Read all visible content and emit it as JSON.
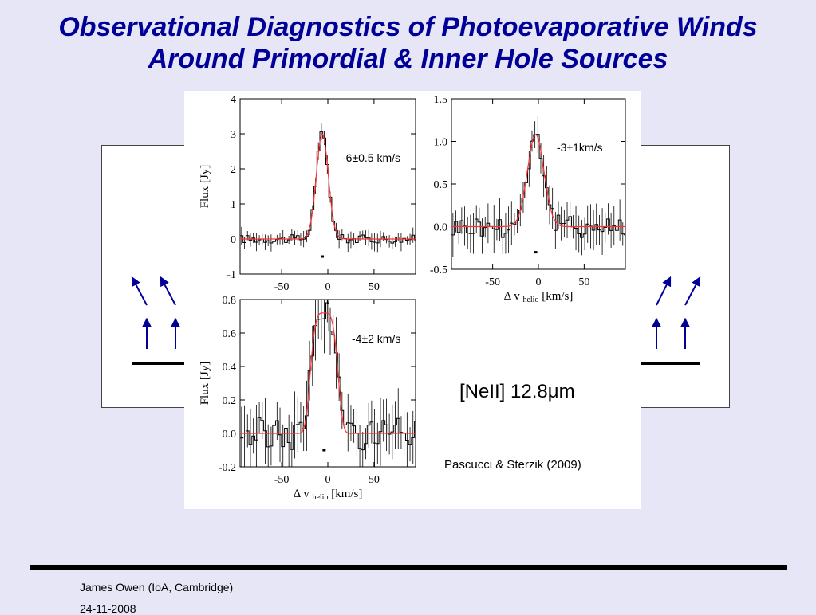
{
  "slide": {
    "title_line1": "Observational Diagnostics of Photoevaporative Winds",
    "title_line2": "Around Primordial & Inner Hole Sources",
    "line_label_prefix": "[NeII] 12.8",
    "line_label_mu": "μ",
    "line_label_suffix": "m",
    "citation": "Pascucci & Sterzik (2009)",
    "footer_author": "James Owen (IoA, Cambridge)",
    "footer_date": "24-11-2008"
  },
  "colors": {
    "title": "#000099",
    "arrow": "#000099",
    "model": "#ff3333",
    "data": "#000000"
  },
  "chart_data": [
    {
      "type": "line",
      "title": "",
      "xlabel": "",
      "ylabel": "Flux  [Jy]",
      "xlim": [
        -95,
        95
      ],
      "ylim": [
        -1,
        4
      ],
      "xticks": [
        -50,
        0,
        50
      ],
      "yticks": [
        -1,
        0,
        1,
        2,
        3,
        4
      ],
      "annotation": "-6±0.5 km/s",
      "model": {
        "center": -6,
        "amplitude": 3.0,
        "sigma": 6.5,
        "shape": "gauss"
      },
      "noise": 0.12,
      "grid": false
    },
    {
      "type": "line",
      "title": "",
      "xlabel": "Δ v",
      "xlabel_sub": "helio",
      "xlabel_unit": "[km/s]",
      "ylabel": "",
      "xlim": [
        -95,
        95
      ],
      "ylim": [
        -0.5,
        1.5
      ],
      "xticks": [
        -50,
        0,
        50
      ],
      "yticks": [
        -0.5,
        0.0,
        0.5,
        1.0,
        1.5
      ],
      "ytick_labels": [
        "-0.5",
        "0.0",
        "0.5",
        "1.0",
        "1.5"
      ],
      "annotation": "-3±1km/s",
      "model": {
        "center": -3,
        "amplitude": 1.08,
        "sigma": 9,
        "shape": "gauss"
      },
      "noise": 0.13,
      "grid": false
    },
    {
      "type": "line",
      "title": "",
      "xlabel": "Δ v",
      "xlabel_sub": "helio",
      "xlabel_unit": "[km/s]",
      "ylabel": "Flux  [Jy]",
      "xlim": [
        -95,
        95
      ],
      "ylim": [
        -0.2,
        0.8
      ],
      "xticks": [
        -50,
        0,
        50
      ],
      "yticks": [
        -0.2,
        0.0,
        0.2,
        0.4,
        0.6,
        0.8
      ],
      "ytick_labels": [
        "-0.2",
        "0.0",
        "0.2",
        "0.4",
        "0.6",
        "0.8"
      ],
      "annotation": "-4±2 km/s",
      "model": {
        "center": -4,
        "amplitude": 0.72,
        "sigma": 15,
        "shape": "flat"
      },
      "noise": 0.1,
      "grid": false
    }
  ]
}
